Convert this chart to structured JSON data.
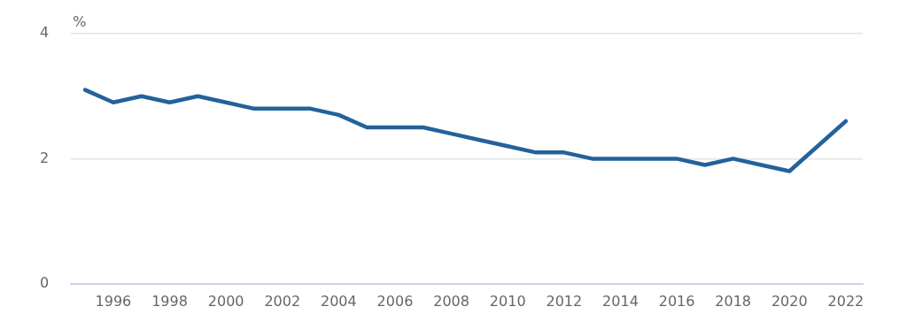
{
  "chart_data": {
    "type": "line",
    "ylabel": "%",
    "x": [
      1995,
      1996,
      1997,
      1998,
      1999,
      2000,
      2001,
      2002,
      2003,
      2004,
      2005,
      2006,
      2007,
      2008,
      2009,
      2010,
      2011,
      2012,
      2013,
      2014,
      2015,
      2016,
      2017,
      2018,
      2019,
      2020,
      2021,
      2022
    ],
    "series": [
      {
        "color": "#23629b",
        "values": [
          3.1,
          2.9,
          3.0,
          2.9,
          3.0,
          2.9,
          2.8,
          2.8,
          2.8,
          2.7,
          2.5,
          2.5,
          2.5,
          2.4,
          2.3,
          2.2,
          2.1,
          2.1,
          2.0,
          2.0,
          2.0,
          2.0,
          1.9,
          2.0,
          1.9,
          1.8,
          2.2,
          2.6
        ]
      }
    ],
    "xlim": [
      1994.5,
      2022.6
    ],
    "xticks": [
      1996,
      1998,
      2000,
      2002,
      2004,
      2006,
      2008,
      2010,
      2012,
      2014,
      2016,
      2018,
      2020,
      2022
    ],
    "ylim": [
      0,
      4
    ],
    "yticks": [
      0,
      2,
      4
    ],
    "grid": "y",
    "legend": false,
    "marker": "none",
    "line_style": "solid"
  }
}
